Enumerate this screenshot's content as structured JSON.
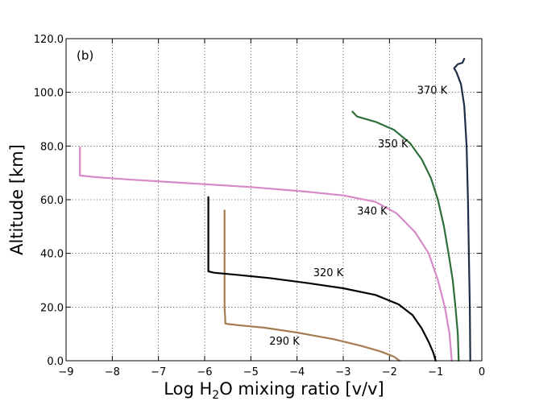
{
  "chart_data": {
    "type": "line",
    "panel_label": "(b)",
    "xlabel_prefix": "Log H",
    "xlabel_sub": "2",
    "xlabel_suffix": "O mixing ratio [v/v]",
    "ylabel": "Altitude [km]",
    "xlim": [
      -9,
      0
    ],
    "ylim": [
      0,
      120
    ],
    "xticks": [
      -9,
      -8,
      -7,
      -6,
      -5,
      -4,
      -3,
      -2,
      -1,
      0
    ],
    "xtick_labels": [
      "−9",
      "−8",
      "−7",
      "−6",
      "−5",
      "−4",
      "−3",
      "−2",
      "−1",
      "0"
    ],
    "yticks": [
      0,
      20,
      40,
      60,
      80,
      100,
      120
    ],
    "ytick_labels": [
      "0.0",
      "20.0",
      "40.0",
      "60.0",
      "80.0",
      "100.0",
      "120.0"
    ],
    "grid": true,
    "series": [
      {
        "name": "290 K",
        "color": "#a57c52",
        "label_at": [
          -4.6,
          7.5
        ],
        "points": [
          [
            -1.78,
            0
          ],
          [
            -1.9,
            1.5
          ],
          [
            -2.2,
            3.5
          ],
          [
            -2.6,
            5.5
          ],
          [
            -3.2,
            8
          ],
          [
            -4.0,
            10.5
          ],
          [
            -4.7,
            12.3
          ],
          [
            -5.3,
            13.3
          ],
          [
            -5.55,
            13.8
          ],
          [
            -5.57,
            20
          ],
          [
            -5.57,
            40
          ],
          [
            -5.57,
            56
          ]
        ]
      },
      {
        "name": "320 K",
        "color": "#000000",
        "label_at": [
          -3.65,
          33
        ],
        "points": [
          [
            -1.0,
            0
          ],
          [
            -1.05,
            3
          ],
          [
            -1.15,
            7
          ],
          [
            -1.3,
            12
          ],
          [
            -1.5,
            17
          ],
          [
            -1.8,
            21
          ],
          [
            -2.3,
            24.5
          ],
          [
            -3.0,
            27
          ],
          [
            -3.8,
            29
          ],
          [
            -4.6,
            30.8
          ],
          [
            -5.3,
            32
          ],
          [
            -5.8,
            32.8
          ],
          [
            -5.92,
            33.3
          ],
          [
            -5.92,
            40
          ],
          [
            -5.92,
            50
          ],
          [
            -5.92,
            61
          ]
        ]
      },
      {
        "name": "340 K",
        "color": "#d68ac7",
        "label_at": [
          -2.7,
          56
        ],
        "points": [
          [
            -0.65,
            0
          ],
          [
            -0.7,
            10
          ],
          [
            -0.8,
            20
          ],
          [
            -0.95,
            30
          ],
          [
            -1.15,
            40
          ],
          [
            -1.45,
            48
          ],
          [
            -1.85,
            55
          ],
          [
            -2.3,
            59.2
          ],
          [
            -3.0,
            61.6
          ],
          [
            -3.8,
            63
          ],
          [
            -5.0,
            64.7
          ],
          [
            -6.5,
            66.3
          ],
          [
            -7.7,
            67.6
          ],
          [
            -8.35,
            68.4
          ],
          [
            -8.7,
            69
          ],
          [
            -8.7,
            75
          ],
          [
            -8.7,
            79.5
          ]
        ]
      },
      {
        "name": "350 K",
        "color": "#2e6e3a",
        "label_at": [
          -2.25,
          81
        ],
        "points": [
          [
            -0.5,
            0
          ],
          [
            -0.52,
            10
          ],
          [
            -0.57,
            20
          ],
          [
            -0.63,
            30
          ],
          [
            -0.72,
            40
          ],
          [
            -0.82,
            50
          ],
          [
            -0.95,
            60
          ],
          [
            -1.1,
            68
          ],
          [
            -1.3,
            75
          ],
          [
            -1.55,
            81
          ],
          [
            -1.9,
            86
          ],
          [
            -2.3,
            89
          ],
          [
            -2.7,
            91
          ],
          [
            -2.8,
            92.8
          ]
        ]
      },
      {
        "name": "370 K",
        "color": "#1d2e45",
        "label_at": [
          -1.4,
          101
        ],
        "points": [
          [
            -0.25,
            0
          ],
          [
            -0.26,
            20
          ],
          [
            -0.28,
            40
          ],
          [
            -0.3,
            60
          ],
          [
            -0.33,
            80
          ],
          [
            -0.38,
            95
          ],
          [
            -0.45,
            103
          ],
          [
            -0.55,
            107.5
          ],
          [
            -0.6,
            109
          ],
          [
            -0.52,
            110.5
          ],
          [
            -0.42,
            111
          ],
          [
            -0.38,
            112.5
          ]
        ]
      }
    ]
  }
}
